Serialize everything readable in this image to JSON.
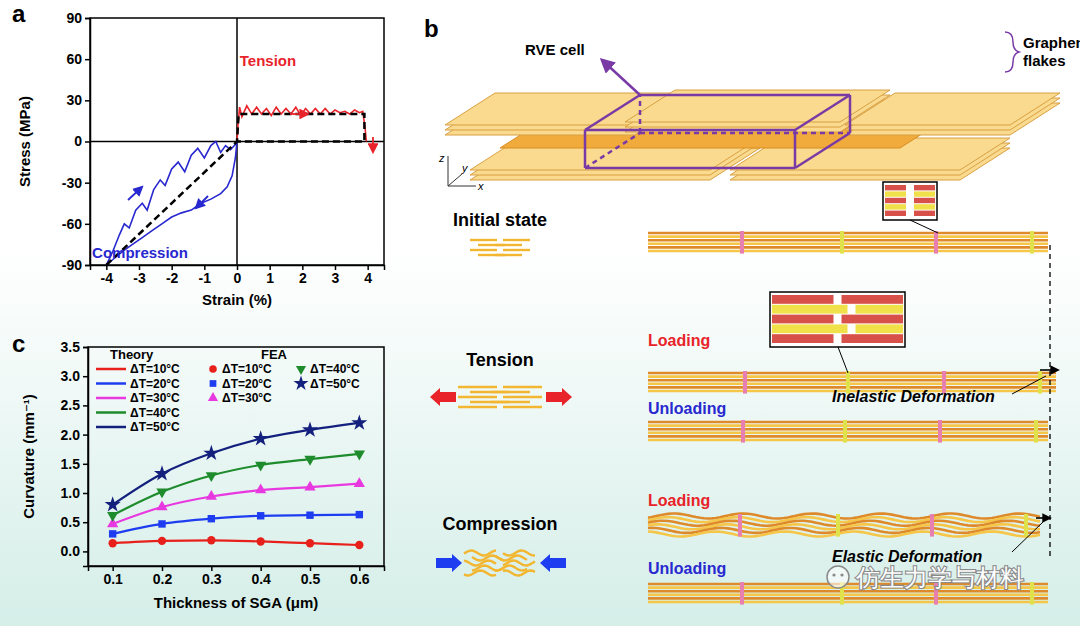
{
  "chart_data": [
    {
      "type": "line",
      "panel_label": "a",
      "x_label": "Strain (%)",
      "y_label": "Stress (MPa)",
      "xlim": [
        -4.5,
        4.5
      ],
      "xticks": [
        -4,
        -3,
        -2,
        -1,
        0,
        1,
        2,
        3,
        4
      ],
      "ylim": [
        -90,
        90
      ],
      "yticks": [
        -90,
        -60,
        -30,
        0,
        30,
        60,
        90
      ],
      "series": [
        {
          "name": "Tension",
          "color": "#e8232a",
          "x": [
            0,
            0.03,
            0.08,
            0.15,
            0.3,
            0.45,
            0.6,
            0.75,
            0.9,
            1.05,
            1.2,
            1.35,
            1.5,
            1.65,
            1.8,
            1.95,
            2.1,
            2.25,
            2.4,
            2.55,
            2.7,
            2.85,
            3.0,
            3.15,
            3.3,
            3.45,
            3.6,
            3.75,
            3.85,
            3.92,
            3.96
          ],
          "values": [
            0,
            12,
            25,
            18,
            26,
            20,
            25,
            20,
            24,
            19,
            25,
            20,
            24,
            20,
            25,
            19,
            24,
            20,
            24,
            20,
            24,
            20,
            23,
            21,
            22,
            20,
            23,
            21,
            22,
            10,
            0
          ]
        },
        {
          "name": "Compression",
          "color": "#2828d0",
          "x": [
            0,
            -0.05,
            -0.15,
            -0.3,
            -0.5,
            -0.8,
            -1.1,
            -1.4,
            -1.7,
            -2.0,
            -2.3,
            -2.6,
            -2.9,
            -3.2,
            -3.5,
            -3.8,
            -4,
            -3.8,
            -3.6,
            -3.45,
            -3.3,
            -3.1,
            -2.9,
            -2.75,
            -2.55,
            -2.35,
            -2.2,
            -2.0,
            -1.8,
            -1.6,
            -1.4,
            -1.2,
            -1.0,
            -0.8,
            -0.65,
            -0.5,
            -0.35,
            -0.2,
            -0.08,
            0
          ],
          "values": [
            0,
            -12,
            -25,
            -33,
            -38,
            -42,
            -45,
            -50,
            -52,
            -55,
            -60,
            -65,
            -70,
            -75,
            -80,
            -86,
            -90,
            -80,
            -68,
            -60,
            -63,
            -50,
            -45,
            -50,
            -35,
            -28,
            -32,
            -20,
            -15,
            -22,
            -10,
            -5,
            -12,
            -3,
            0,
            -8,
            -3,
            -6,
            -3,
            0
          ]
        },
        {
          "color": "#000000",
          "line_style": "dashed",
          "x": [
            -4,
            0,
            0.05,
            3.9,
            3.9,
            0
          ],
          "values": [
            -90,
            0,
            20,
            20,
            0,
            0
          ]
        }
      ]
    },
    {
      "type": "line",
      "panel_label": "c",
      "x_label": "Thickness of SGA (μm)",
      "y_label": "Curvature (mm⁻¹)",
      "xlim": [
        0.05,
        0.65
      ],
      "xticks": [
        0.1,
        0.2,
        0.3,
        0.4,
        0.5,
        0.6
      ],
      "ylim": [
        -0.25,
        3.5
      ],
      "yticks": [
        {
          "value": 0,
          "label": "0.0"
        },
        0.5,
        {
          "value": 1,
          "label": "1.0"
        },
        1.5,
        {
          "value": 2,
          "label": "2.0"
        },
        2.5,
        {
          "value": 3,
          "label": "3.0"
        },
        3.5
      ],
      "legend": "upper left",
      "legend_titles": [
        "Theory",
        "FEA"
      ],
      "x": [
        0.1,
        0.2,
        0.3,
        0.4,
        0.5,
        0.6
      ],
      "series": [
        {
          "name": "ΔT=10°C",
          "type": "line",
          "color": "#e8201c",
          "values": [
            0.14,
            0.18,
            0.19,
            0.17,
            0.14,
            0.11
          ]
        },
        {
          "name": "ΔT=20°C",
          "type": "line",
          "color": "#1e3cf0",
          "values": [
            0.3,
            0.47,
            0.56,
            0.61,
            0.62,
            0.63
          ]
        },
        {
          "name": "ΔT=30°C",
          "type": "line",
          "color": "#e838e0",
          "values": [
            0.47,
            0.76,
            0.94,
            1.05,
            1.1,
            1.16
          ]
        },
        {
          "name": "ΔT=40°C",
          "type": "line",
          "color": "#1e8c2c",
          "values": [
            0.62,
            1.02,
            1.3,
            1.48,
            1.58,
            1.67
          ]
        },
        {
          "name": "ΔT=50°C",
          "type": "line",
          "color": "#13207e",
          "values": [
            0.8,
            1.33,
            1.68,
            1.93,
            2.08,
            2.2
          ]
        },
        {
          "name": "ΔT=10°C",
          "type": "scatter",
          "marker": "circle",
          "color": "#e8201c",
          "values": [
            0.14,
            0.18,
            0.19,
            0.17,
            0.14,
            0.11
          ]
        },
        {
          "name": "ΔT=20°C",
          "type": "scatter",
          "marker": "square",
          "color": "#1e3cf0",
          "values": [
            0.3,
            0.47,
            0.56,
            0.61,
            0.62,
            0.63
          ]
        },
        {
          "name": "ΔT=30°C",
          "type": "scatter",
          "marker": "triangle",
          "color": "#e838e0",
          "values": [
            0.47,
            0.76,
            0.94,
            1.05,
            1.1,
            1.16
          ]
        },
        {
          "name": "ΔT=40°C",
          "type": "scatter",
          "marker": "triangle-down",
          "color": "#1e8c2c",
          "values": [
            0.62,
            1.02,
            1.3,
            1.48,
            1.58,
            1.67
          ]
        },
        {
          "name": "ΔT=50°C",
          "type": "scatter",
          "marker": "star",
          "color": "#13207e",
          "values": [
            0.8,
            1.33,
            1.68,
            1.93,
            2.08,
            2.2
          ]
        }
      ]
    }
  ],
  "diagram": {
    "panel_label": "b",
    "rve_label": "RVE cell",
    "flakes_label": [
      "Graphene",
      "flakes"
    ],
    "axes": [
      "z",
      "y",
      "x"
    ],
    "states": [
      {
        "label": "Initial state"
      },
      {
        "label": "Tension",
        "loading": "Loading",
        "unloading": "Unloading",
        "deformation": "Inelastic Deformation"
      },
      {
        "label": "Compression",
        "loading": "Loading",
        "unloading": "Unloading",
        "deformation": "Elastic Deformation"
      }
    ]
  },
  "watermark": "仿生力学与材料"
}
